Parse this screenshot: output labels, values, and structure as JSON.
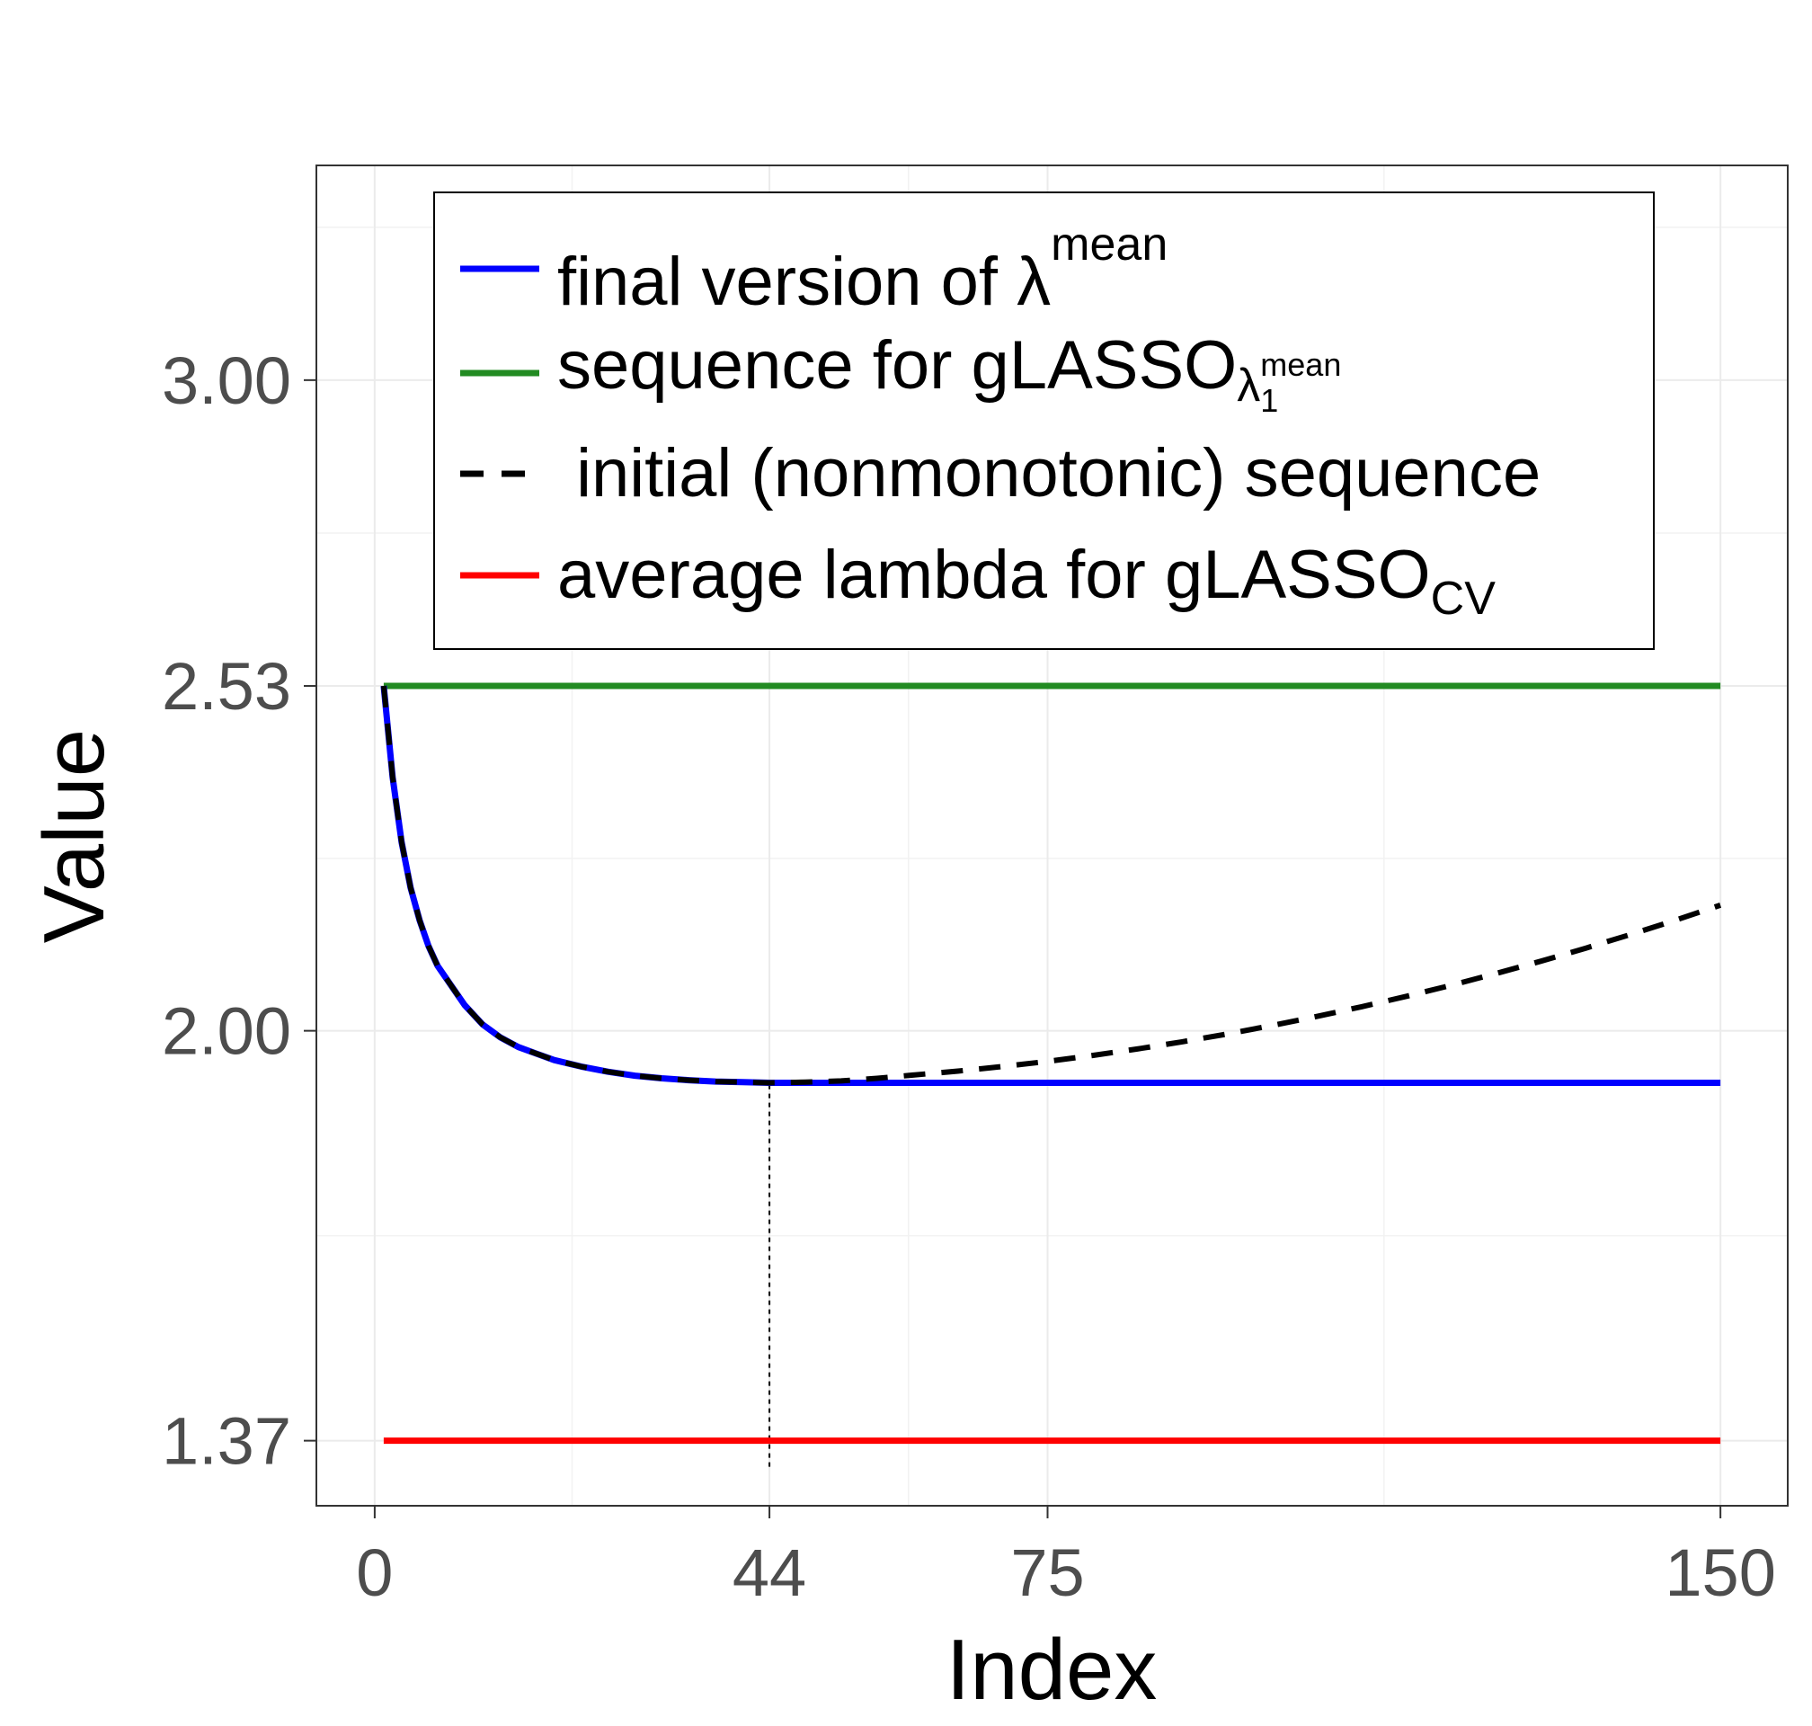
{
  "chart_data": {
    "type": "line",
    "xlabel": "Index",
    "ylabel": "Value",
    "xlim": [
      -6.5,
      157.5
    ],
    "ylim": [
      1.27,
      3.33
    ],
    "x_ticks": [
      {
        "value": 0,
        "label": "0"
      },
      {
        "value": 44,
        "label": "44"
      },
      {
        "value": 75,
        "label": "75"
      },
      {
        "value": 150,
        "label": "150"
      }
    ],
    "y_ticks": [
      {
        "value": 1.37,
        "label": "1.37"
      },
      {
        "value": 2.0,
        "label": "2.00"
      },
      {
        "value": 2.53,
        "label": "2.53"
      },
      {
        "value": 3.0,
        "label": "3.00"
      }
    ],
    "grid": true,
    "legend_placement": "top",
    "series": [
      {
        "key": "final",
        "name": "final version of λ",
        "name_sup": "mean",
        "color": "#0000ff",
        "dash": "solid",
        "x": [
          1,
          2,
          3,
          4,
          5,
          6,
          7,
          8,
          10,
          12,
          14,
          16,
          18,
          20,
          23,
          26,
          29,
          32,
          35,
          38,
          41,
          44,
          50,
          60,
          80,
          100,
          120,
          150
        ],
        "y": [
          2.53,
          2.39,
          2.29,
          2.22,
          2.17,
          2.13,
          2.1,
          2.08,
          2.04,
          2.01,
          1.99,
          1.975,
          1.965,
          1.955,
          1.945,
          1.937,
          1.931,
          1.927,
          1.924,
          1.922,
          1.921,
          1.92,
          1.92,
          1.92,
          1.92,
          1.92,
          1.92,
          1.92
        ]
      },
      {
        "key": "gLASSO_mean",
        "name": "sequence  for  gLASSO",
        "name_sub": "λ",
        "name_subsub": "1",
        "name_subsup": "mean",
        "color": "#228b22",
        "dash": "solid",
        "x": [
          1,
          150
        ],
        "y": [
          2.53,
          2.53
        ]
      },
      {
        "key": "initial",
        "name": " initial (nonmonotonic) sequence",
        "color": "#000000",
        "dash": "dashed",
        "x": [
          1,
          2,
          3,
          4,
          5,
          6,
          7,
          8,
          10,
          12,
          14,
          16,
          18,
          20,
          23,
          26,
          29,
          32,
          35,
          38,
          41,
          44,
          48,
          52,
          56,
          60,
          65,
          70,
          75,
          80,
          85,
          90,
          95,
          100,
          105,
          110,
          115,
          120,
          125,
          130,
          135,
          140,
          145,
          150
        ],
        "y": [
          2.53,
          2.39,
          2.29,
          2.22,
          2.17,
          2.13,
          2.1,
          2.08,
          2.04,
          2.01,
          1.99,
          1.975,
          1.965,
          1.955,
          1.945,
          1.937,
          1.931,
          1.927,
          1.924,
          1.922,
          1.921,
          1.92,
          1.921,
          1.923,
          1.927,
          1.932,
          1.938,
          1.945,
          1.953,
          1.962,
          1.972,
          1.983,
          1.995,
          2.008,
          2.022,
          2.037,
          2.053,
          2.07,
          2.088,
          2.107,
          2.127,
          2.148,
          2.17,
          2.193
        ]
      },
      {
        "key": "avg_cv",
        "name": "average lambda for gLASSO",
        "name_sub": "CV",
        "color": "#ff0000",
        "dash": "solid",
        "x": [
          1,
          150
        ],
        "y": [
          1.37,
          1.37
        ]
      }
    ],
    "annotations": [
      {
        "type": "vline",
        "x": 44,
        "y_from": 1.33,
        "y_to": 1.92,
        "style": "dotted",
        "color": "#000000"
      }
    ]
  }
}
